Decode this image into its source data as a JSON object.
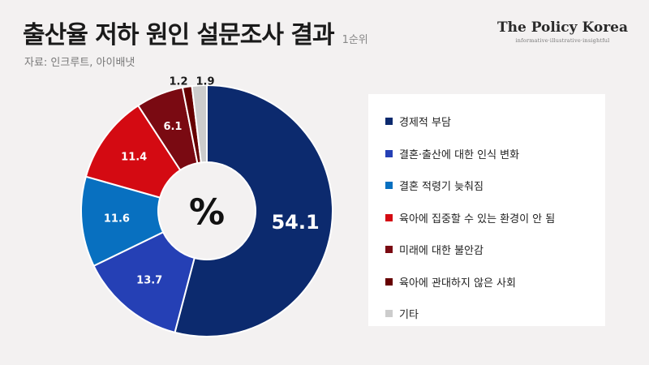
{
  "header": {
    "title": "출산율 저하 원인 설문조사 결과",
    "note": "1순위",
    "source": "자료: 인크루트, 아이배냇"
  },
  "brand": {
    "name": "The Policy Korea",
    "tagline": "informative·illustrative·insightful"
  },
  "chart_data": {
    "type": "pie",
    "center_label": "%",
    "categories": [
      "경제적 부담",
      "결혼·출산에 대한 인식 변화",
      "결혼 적령기 늦춰짐",
      "육아에 집중할 수 있는 환경이 안 됨",
      "미래에 대한 불안감",
      "육아에 관대하지 않은 사회",
      "기타"
    ],
    "values": [
      54.1,
      13.7,
      11.6,
      11.4,
      6.1,
      1.2,
      1.9
    ],
    "labels": [
      "54.1",
      "13.7",
      "11.6",
      "11.4",
      "6.1",
      "1.2",
      "1.9"
    ],
    "colors": [
      "#0c2a6e",
      "#2540b5",
      "#0870c0",
      "#d40a12",
      "#7a0a12",
      "#660000",
      "#cccccc"
    ],
    "label_colors": [
      "#ffffff",
      "#ffffff",
      "#ffffff",
      "#ffffff",
      "#ffffff",
      "#1a1a1a",
      "#1a1a1a"
    ],
    "legend_position": "right"
  }
}
